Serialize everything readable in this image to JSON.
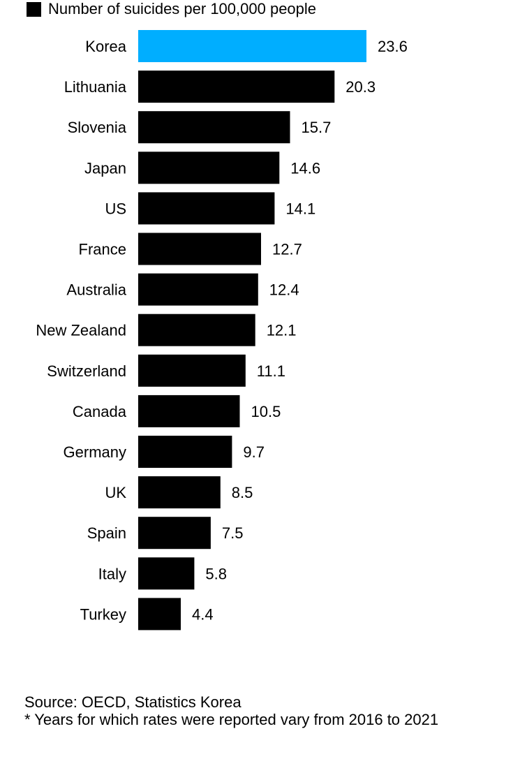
{
  "legend": {
    "label": "Number of suicides per 100,000 people",
    "color": "#000000"
  },
  "colors": {
    "highlight": "#00AEFF",
    "default": "#000000"
  },
  "chart_data": {
    "type": "bar",
    "orientation": "horizontal",
    "categories": [
      "Korea",
      "Lithuania",
      "Slovenia",
      "Japan",
      "US",
      "France",
      "Australia",
      "New Zealand",
      "Switzerland",
      "Canada",
      "Germany",
      "UK",
      "Spain",
      "Italy",
      "Turkey"
    ],
    "values": [
      23.6,
      20.3,
      15.7,
      14.6,
      14.1,
      12.7,
      12.4,
      12.1,
      11.1,
      10.5,
      9.7,
      8.5,
      7.5,
      5.8,
      4.4
    ],
    "value_labels": [
      "23.6",
      "20.3",
      "15.7",
      "14.6",
      "14.1",
      "12.7",
      "12.4",
      "12.1",
      "11.1",
      "10.5",
      "9.7",
      "8.5",
      "7.5",
      "5.8",
      "4.4"
    ],
    "highlight_index": 0,
    "series": [
      {
        "name": "Number of suicides per 100,000 people",
        "values": [
          23.6,
          20.3,
          15.7,
          14.6,
          14.1,
          12.7,
          12.4,
          12.1,
          11.1,
          10.5,
          9.7,
          8.5,
          7.5,
          5.8,
          4.4
        ]
      }
    ],
    "xlim": [
      0,
      23.6
    ],
    "grid": false,
    "legend_position": "top-left",
    "title": "",
    "xlabel": "",
    "ylabel": ""
  },
  "footer": {
    "source": "Source: OECD, Statistics Korea",
    "note": "* Years for which rates were reported vary from 2016 to 2021"
  }
}
